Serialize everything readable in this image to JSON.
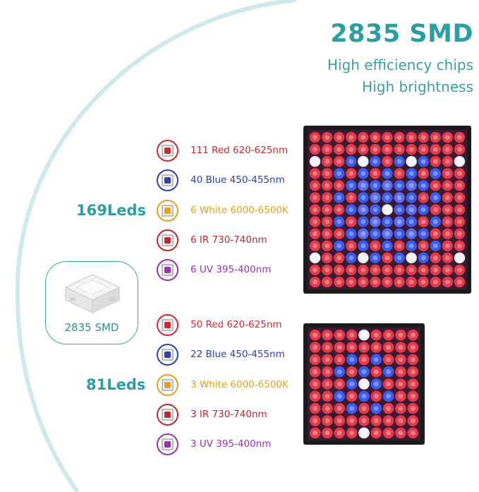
{
  "header": {
    "title": "2835 SMD",
    "line1": "High efficiency chips",
    "line2": "High brightness"
  },
  "badge": {
    "label": "2835 SMD"
  },
  "groups": [
    {
      "count_label": "169Leds",
      "items": [
        {
          "label": "111 Red 620-625nm",
          "color": "#d7262f",
          "icon": "red-led-icon"
        },
        {
          "label": "40 Blue 450-455nm",
          "color": "#2c3fb5",
          "icon": "blue-led-icon"
        },
        {
          "label": "6 White 6000-6500K",
          "color": "#e6a11c",
          "icon": "white-led-icon"
        },
        {
          "label": "6 IR 730-740nm",
          "color": "#c0262c",
          "icon": "ir-led-icon"
        },
        {
          "label": "6 UV 395-400nm",
          "color": "#9b2fb8",
          "icon": "uv-led-icon"
        }
      ]
    },
    {
      "count_label": "81Leds",
      "items": [
        {
          "label": "50 Red 620-625nm",
          "color": "#d7262f",
          "icon": "red-led-icon"
        },
        {
          "label": "22 Blue 450-455nm",
          "color": "#2c3fb5",
          "icon": "blue-led-icon"
        },
        {
          "label": "3 White 6000-6500K",
          "color": "#e6a11c",
          "icon": "white-led-icon"
        },
        {
          "label": "3 IR 730-740nm",
          "color": "#c0262c",
          "icon": "ir-led-icon"
        },
        {
          "label": "3 UV 395-400nm",
          "color": "#9b2fb8",
          "icon": "uv-led-icon"
        }
      ]
    }
  ]
}
